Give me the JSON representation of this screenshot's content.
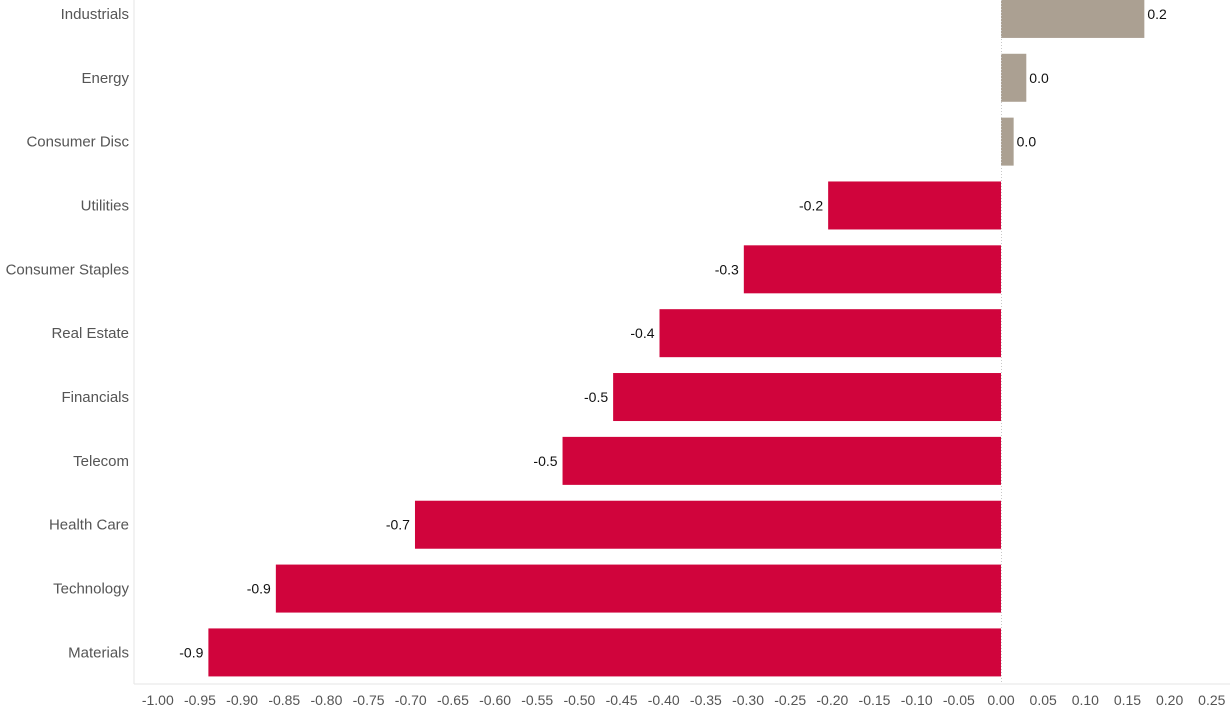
{
  "chart_data": {
    "type": "bar",
    "orientation": "horizontal",
    "title": "",
    "xlabel": "",
    "ylabel": "",
    "categories": [
      "Industrials",
      "Energy",
      "Consumer Disc",
      "Utilities",
      "Consumer Staples",
      "Real Estate",
      "Financials",
      "Telecom",
      "Health Care",
      "Technology",
      "Materials"
    ],
    "values": [
      0.17,
      0.03,
      0.015,
      -0.205,
      -0.305,
      -0.405,
      -0.46,
      -0.52,
      -0.695,
      -0.86,
      -0.94
    ],
    "data_labels": [
      "0.2",
      "0.0",
      "0.0",
      "-0.2",
      "-0.3",
      "-0.4",
      "-0.5",
      "-0.5",
      "-0.7",
      "-0.9",
      "-0.9"
    ],
    "xlim": [
      -1.0,
      0.25
    ],
    "x_ticks": [
      "-1.00",
      "-0.95",
      "-0.90",
      "-0.85",
      "-0.80",
      "-0.75",
      "-0.70",
      "-0.65",
      "-0.60",
      "-0.55",
      "-0.50",
      "-0.45",
      "-0.40",
      "-0.35",
      "-0.30",
      "-0.25",
      "-0.20",
      "-0.15",
      "-0.10",
      "-0.05",
      "0.00",
      "0.05",
      "0.10",
      "0.15",
      "0.20",
      "0.25"
    ],
    "grid": false,
    "legend": "none",
    "colors": {
      "positive": "#aba092",
      "negative": "#d0043c",
      "axis": "#e6e6e6",
      "zero_line": "#c8c8c8"
    }
  }
}
